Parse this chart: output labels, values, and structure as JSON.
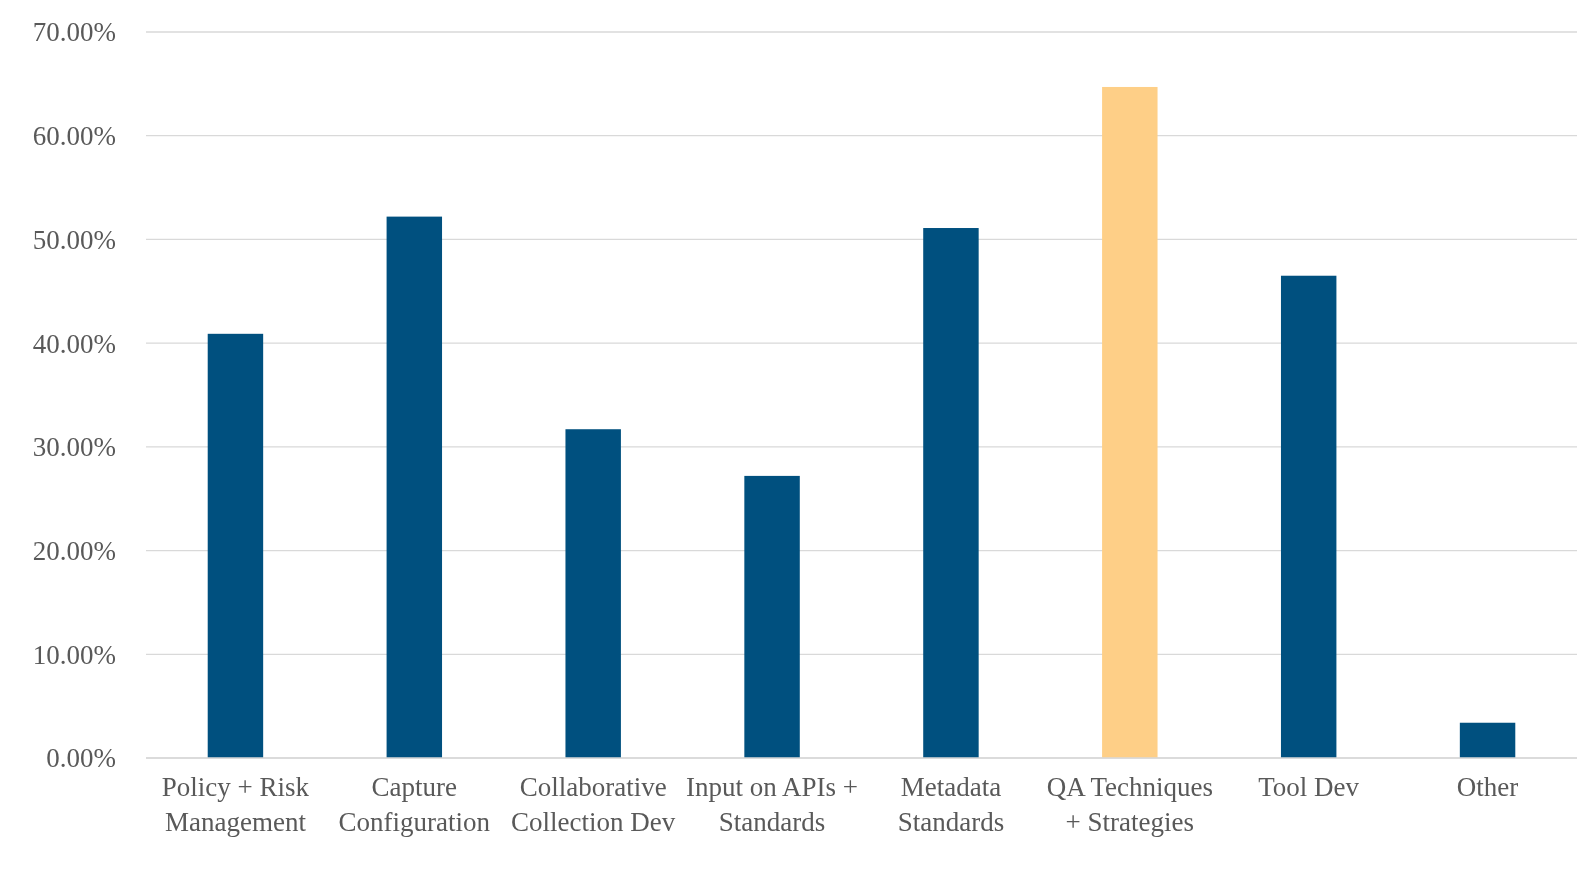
{
  "chart_data": {
    "type": "bar",
    "categories": [
      "Policy + Risk Management",
      "Capture Configuration",
      "Collaborative Collection Dev",
      "Input on APIs + Standards",
      "Metadata Standards",
      "QA Techniques + Strategies",
      "Tool Dev",
      "Other"
    ],
    "values": [
      40.9,
      52.2,
      31.7,
      27.2,
      51.1,
      64.7,
      46.5,
      3.4
    ],
    "colors": [
      "#00507f",
      "#00507f",
      "#00507f",
      "#00507f",
      "#00507f",
      "#fecf87",
      "#00507f",
      "#00507f"
    ],
    "ylim": [
      0,
      70
    ],
    "yticks": [
      {
        "value": 0,
        "label": "0.00%"
      },
      {
        "value": 10,
        "label": "10.00%"
      },
      {
        "value": 20,
        "label": "20.00%"
      },
      {
        "value": 30,
        "label": "30.00%"
      },
      {
        "value": 40,
        "label": "40.00%"
      },
      {
        "value": 50,
        "label": "50.00%"
      },
      {
        "value": 60,
        "label": "60.00%"
      },
      {
        "value": 70,
        "label": "70.00%"
      }
    ],
    "grid": "y"
  }
}
